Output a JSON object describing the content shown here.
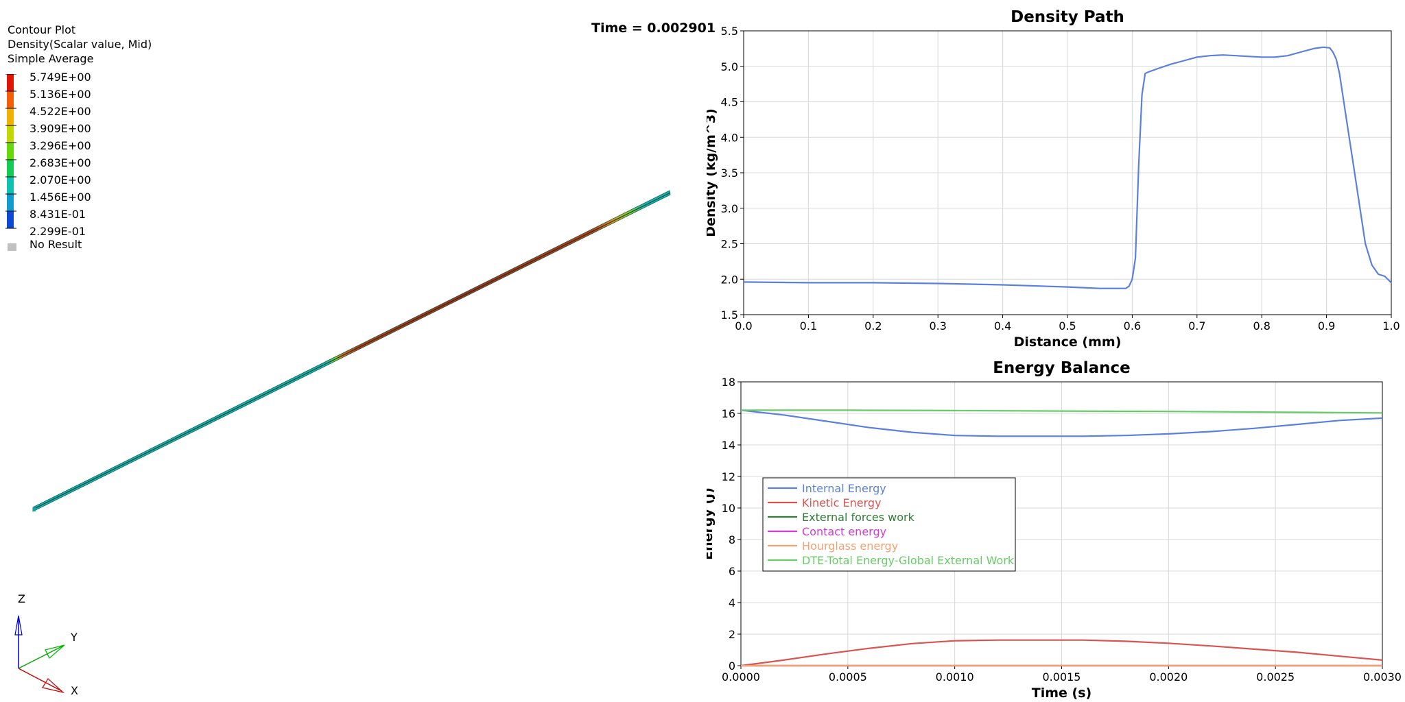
{
  "contour_legend": {
    "title": "Contour Plot",
    "subtitle": "Density(Scalar value, Mid)",
    "averaging": "Simple Average",
    "levels": [
      "5.749E+00",
      "5.136E+00",
      "4.522E+00",
      "3.909E+00",
      "3.296E+00",
      "2.683E+00",
      "2.070E+00",
      "1.456E+00",
      "8.431E-01",
      "2.299E-01"
    ],
    "colors": [
      "#d40000",
      "#e83010",
      "#ff9a00",
      "#ddd000",
      "#a8e000",
      "#18d018",
      "#10c8a0",
      "#10b8c0",
      "#1878e0",
      "#0010c0"
    ],
    "no_result": "No Result"
  },
  "time_label": "Time = 0.002901",
  "triad": {
    "z": "Z",
    "y": "Y",
    "x": "X"
  },
  "chart_data": [
    {
      "type": "line",
      "title": "Density Path",
      "xlabel": "Distance (mm)",
      "ylabel": "Density (kg/m^3)",
      "xlim": [
        0.0,
        1.0
      ],
      "ylim": [
        1.5,
        5.5
      ],
      "xticks": [
        "0.0",
        "0.1",
        "0.2",
        "0.3",
        "0.4",
        "0.5",
        "0.6",
        "0.7",
        "0.8",
        "0.9",
        "1.0"
      ],
      "yticks": [
        "1.5",
        "2.0",
        "2.5",
        "3.0",
        "3.5",
        "4.0",
        "4.5",
        "5.0",
        "5.5"
      ],
      "grid": true,
      "series": [
        {
          "color": "#5a7fde",
          "x": [
            0.0,
            0.1,
            0.2,
            0.3,
            0.4,
            0.5,
            0.55,
            0.59,
            0.595,
            0.6,
            0.605,
            0.61,
            0.615,
            0.62,
            0.625,
            0.64,
            0.66,
            0.68,
            0.7,
            0.72,
            0.74,
            0.76,
            0.78,
            0.8,
            0.82,
            0.84,
            0.86,
            0.88,
            0.895,
            0.905,
            0.91,
            0.915,
            0.92,
            0.93,
            0.94,
            0.95,
            0.96,
            0.97,
            0.98,
            0.99,
            1.0
          ],
          "y": [
            1.96,
            1.95,
            1.95,
            1.94,
            1.92,
            1.89,
            1.87,
            1.87,
            1.9,
            2.0,
            2.3,
            3.6,
            4.6,
            4.9,
            4.92,
            4.97,
            5.03,
            5.08,
            5.13,
            5.15,
            5.16,
            5.15,
            5.14,
            5.13,
            5.13,
            5.15,
            5.2,
            5.25,
            5.27,
            5.26,
            5.2,
            5.1,
            4.9,
            4.3,
            3.7,
            3.1,
            2.5,
            2.2,
            2.07,
            2.04,
            1.95
          ]
        }
      ]
    },
    {
      "type": "line",
      "title": "Energy Balance",
      "xlabel": "Time (s)",
      "ylabel": "Energy (J)",
      "xlim": [
        0.0,
        0.003
      ],
      "ylim": [
        0,
        18
      ],
      "xticks": [
        "0.0000",
        "0.0005",
        "0.0010",
        "0.0015",
        "0.0020",
        "0.0025",
        "0.0030"
      ],
      "yticks": [
        "0",
        "2",
        "4",
        "6",
        "8",
        "10",
        "12",
        "14",
        "16",
        "18"
      ],
      "grid": true,
      "legend_position": "center-left",
      "series": [
        {
          "name": "Internal Energy",
          "color": "#5a7fde",
          "x": [
            0,
            0.0002,
            0.0004,
            0.0006,
            0.0008,
            0.001,
            0.0012,
            0.0014,
            0.0016,
            0.0018,
            0.002,
            0.0022,
            0.0024,
            0.0026,
            0.0028,
            0.003
          ],
          "y": [
            16.2,
            15.9,
            15.5,
            15.1,
            14.8,
            14.6,
            14.55,
            14.55,
            14.55,
            14.6,
            14.7,
            14.85,
            15.05,
            15.3,
            15.55,
            15.7
          ]
        },
        {
          "name": "Kinetic Energy",
          "color": "#d9534f",
          "x": [
            0,
            0.0002,
            0.0004,
            0.0006,
            0.0008,
            0.001,
            0.0012,
            0.0014,
            0.0016,
            0.0018,
            0.002,
            0.0022,
            0.0024,
            0.0026,
            0.0028,
            0.003
          ],
          "y": [
            0.0,
            0.35,
            0.75,
            1.1,
            1.4,
            1.58,
            1.62,
            1.62,
            1.62,
            1.55,
            1.42,
            1.25,
            1.05,
            0.85,
            0.6,
            0.35
          ]
        },
        {
          "name": "External forces work",
          "color": "#2e7d32",
          "x": [
            0,
            0.003
          ],
          "y": [
            0.0,
            0.0
          ]
        },
        {
          "name": "Contact energy",
          "color": "#d63ad6",
          "x": [
            0,
            0.003
          ],
          "y": [
            0.0,
            0.0
          ]
        },
        {
          "name": "Hourglass energy",
          "color": "#f4a070",
          "x": [
            0,
            0.003
          ],
          "y": [
            0.0,
            0.0
          ]
        },
        {
          "name": "DTE-Total Energy-Global External Work",
          "color": "#66cc66",
          "x": [
            0,
            0.0005,
            0.001,
            0.0015,
            0.002,
            0.0025,
            0.003
          ],
          "y": [
            16.2,
            16.2,
            16.18,
            16.15,
            16.12,
            16.08,
            16.03
          ]
        }
      ]
    }
  ]
}
